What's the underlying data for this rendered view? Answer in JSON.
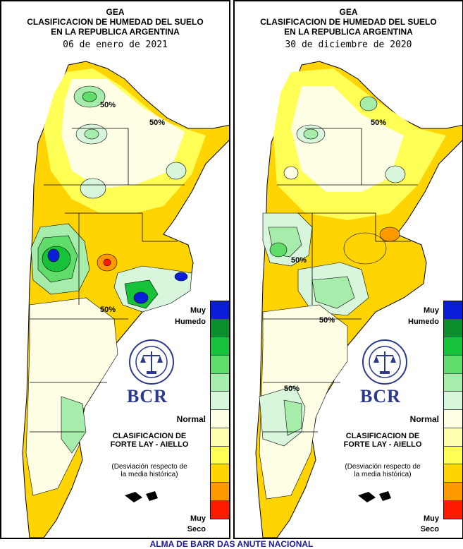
{
  "left_panel": {
    "title_org": "GEA",
    "title_line1": "CLASIFICACION DE HUMEDAD DEL SUELO",
    "title_line2": "EN LA REPUBLICA ARGENTINA",
    "date": "06 de enero de 2021",
    "contour_labels": [
      "50%",
      "50%",
      "50%"
    ],
    "legend_muy": "Muy",
    "legend_humedo": "Humedo",
    "legend_normal": "Normal",
    "legend_muy_seco": "Muy",
    "legend_seco": "Seco",
    "classification_title_1": "CLASIFICACION DE",
    "classification_title_2": "FORTE LAY - AIELLO",
    "note_1": "(Desviación respecto de",
    "note_2": "la media histórica)",
    "logo_text": "BCR"
  },
  "right_panel": {
    "title_org": "GEA",
    "title_line1": "CLASIFICACION DE HUMEDAD DEL SUELO",
    "title_line2": "EN LA REPUBLICA ARGENTINA",
    "date": "30 de diciembre de 2020",
    "contour_labels": [
      "50%",
      "50%",
      "50%",
      "50%"
    ],
    "legend_muy": "Muy",
    "legend_humedo": "Humedo",
    "legend_normal": "Normal",
    "legend_muy_seco": "Muy",
    "legend_seco": "Seco",
    "classification_title_1": "CLASIFICACION DE",
    "classification_title_2": "FORTE LAY - AIELLO",
    "note_1": "(Desviación respecto de",
    "note_2": "la media histórica)",
    "logo_text": "BCR"
  },
  "legend_colors": [
    "#0a1ed8",
    "#0b8f2e",
    "#16c23a",
    "#5fdc6a",
    "#a6ecaa",
    "#d7f6dc",
    "#ffffe6",
    "#ffffb0",
    "#ffff55",
    "#ffd400",
    "#ff9900",
    "#ff1a00"
  ],
  "footer": "ALMA DE BARR DAS ANUTE NACIONAL"
}
